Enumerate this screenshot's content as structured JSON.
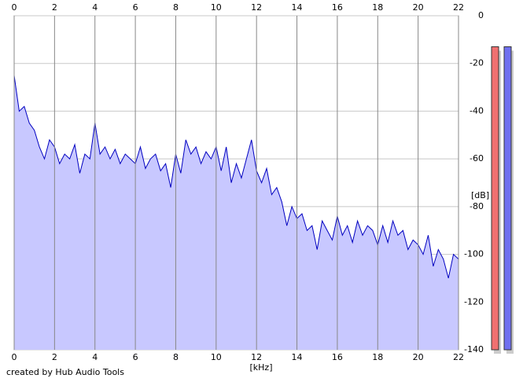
{
  "chart_data": {
    "type": "area",
    "xlabel": "[kHz]",
    "ylabel": "[dB]",
    "footer": "created by Hub Audio Tools",
    "xlim": [
      0,
      22
    ],
    "xticks": [
      0,
      2,
      4,
      6,
      8,
      10,
      12,
      14,
      16,
      18,
      20,
      22
    ],
    "ylim": [
      -140,
      0
    ],
    "yticks": [
      0,
      -20,
      -40,
      -60,
      -80,
      -100,
      -120,
      -140
    ],
    "grid": true,
    "color": "#0000c0",
    "fill": "#c8c8ff",
    "x": [
      0,
      0.25,
      0.5,
      0.75,
      1,
      1.25,
      1.5,
      1.75,
      2,
      2.25,
      2.5,
      2.75,
      3,
      3.25,
      3.5,
      3.75,
      4,
      4.25,
      4.5,
      4.75,
      5,
      5.25,
      5.5,
      5.75,
      6,
      6.25,
      6.5,
      6.75,
      7,
      7.25,
      7.5,
      7.75,
      8,
      8.25,
      8.5,
      8.75,
      9,
      9.25,
      9.5,
      9.75,
      10,
      10.25,
      10.5,
      10.75,
      11,
      11.25,
      11.5,
      11.75,
      12,
      12.25,
      12.5,
      12.75,
      13,
      13.25,
      13.5,
      13.75,
      14,
      14.25,
      14.5,
      14.75,
      15,
      15.25,
      15.5,
      15.75,
      16,
      16.25,
      16.5,
      16.75,
      17,
      17.25,
      17.5,
      17.75,
      18,
      18.25,
      18.5,
      18.75,
      19,
      19.25,
      19.5,
      19.75,
      20,
      20.25,
      20.5,
      20.75,
      21,
      21.25,
      21.5,
      21.75,
      22
    ],
    "values": [
      -25,
      -40,
      -38,
      -45,
      -48,
      -55,
      -60,
      -52,
      -55,
      -62,
      -58,
      -60,
      -54,
      -66,
      -58,
      -60,
      -45,
      -58,
      -55,
      -60,
      -56,
      -62,
      -58,
      -60,
      -62,
      -55,
      -64,
      -60,
      -58,
      -65,
      -62,
      -72,
      -58,
      -66,
      -52,
      -58,
      -55,
      -62,
      -57,
      -60,
      -55,
      -65,
      -55,
      -70,
      -62,
      -68,
      -60,
      -52,
      -65,
      -70,
      -64,
      -75,
      -72,
      -78,
      -88,
      -80,
      -85,
      -83,
      -90,
      -88,
      -98,
      -86,
      -90,
      -94,
      -84,
      -92,
      -88,
      -95,
      -86,
      -92,
      -88,
      -90,
      -96,
      -88,
      -95,
      -86,
      -92,
      -90,
      -98,
      -94,
      -96,
      -100,
      -92,
      -105,
      -98,
      -102,
      -110,
      -100,
      -102
    ],
    "level_meters": [
      {
        "color": "#f07070",
        "value": -13
      },
      {
        "color": "#7070f0",
        "value": -13
      }
    ]
  }
}
